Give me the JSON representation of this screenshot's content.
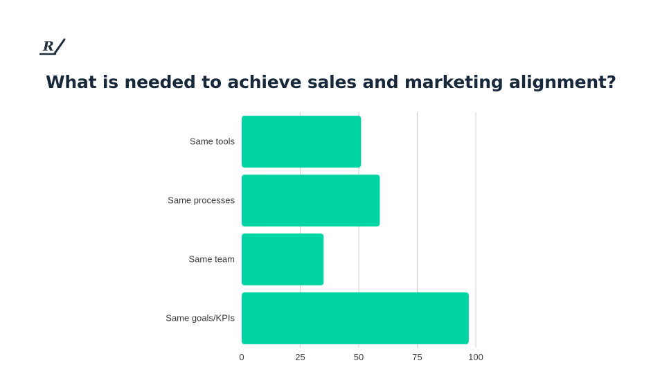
{
  "header": {
    "logo_text": "R/",
    "title": "What is needed to achieve sales and marketing alignment?"
  },
  "chart_data": {
    "type": "bar",
    "orientation": "horizontal",
    "title": "What is needed to achieve sales and marketing alignment?",
    "xlabel": "",
    "ylabel": "",
    "categories": [
      "Same tools",
      "Same processes",
      "Same team",
      "Same goals/KPIs"
    ],
    "values": [
      51,
      59,
      35,
      97
    ],
    "xlim": [
      0,
      100
    ],
    "xticks": [
      0,
      25,
      50,
      75,
      100
    ],
    "grid": true,
    "legend": "none",
    "bar_color": "#00d4a4",
    "grid_color": "#cfcfcf"
  }
}
